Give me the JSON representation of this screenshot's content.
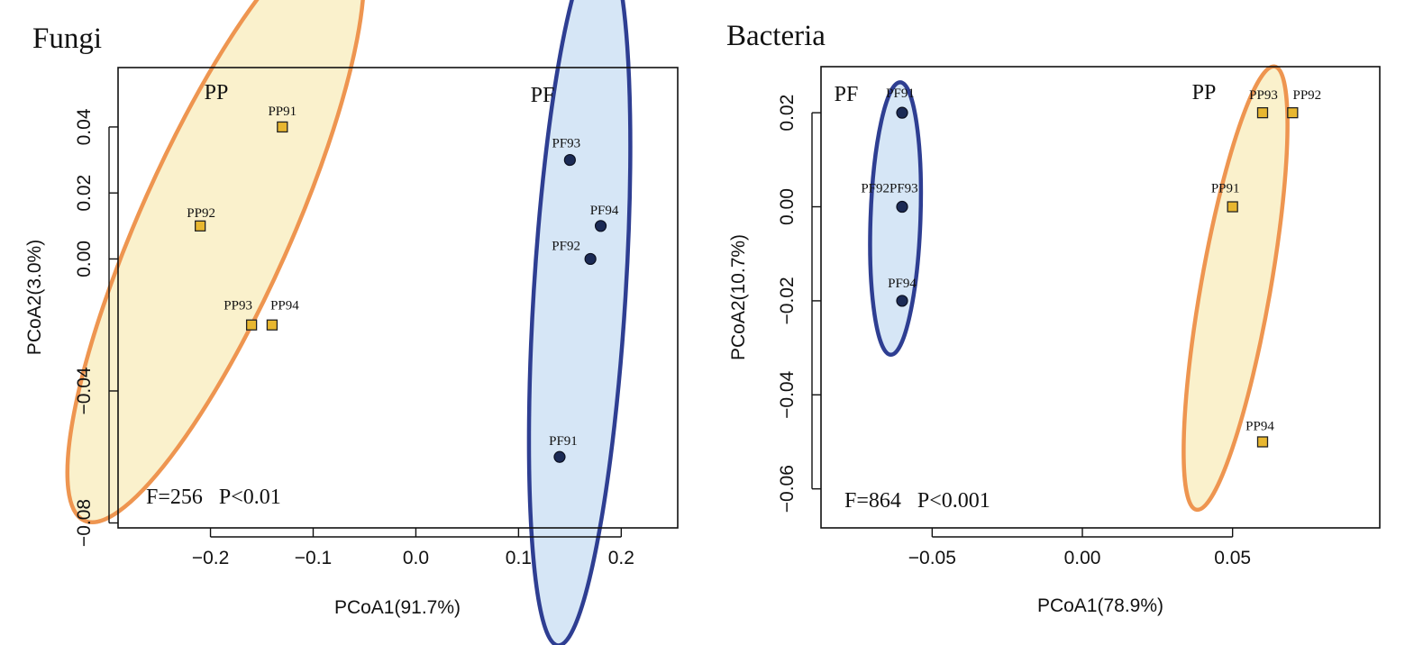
{
  "chart_data": [
    {
      "type": "scatter",
      "title": "Fungi",
      "xlabel": "PCoA1(91.7%)",
      "ylabel": "PCoA2(3.0%)",
      "xlim": [
        -0.29,
        0.255
      ],
      "ylim": [
        -0.0815,
        0.058
      ],
      "xticks": [
        -0.2,
        -0.1,
        0.0,
        0.1,
        0.2
      ],
      "xtick_labels": [
        "−0.2",
        "−0.1",
        "0.0",
        "0.1",
        "0.2"
      ],
      "yticks": [
        -0.08,
        -0.04,
        0.0,
        0.02,
        0.04
      ],
      "ytick_labels": [
        "−0.08",
        "−0.04",
        "0.00",
        "0.02",
        "0.04"
      ],
      "stat": "F=256   P<0.01",
      "series": [
        {
          "name": "PP",
          "marker": "square",
          "fill": "#E8B730",
          "ellipse_fill": "#FAF1CC",
          "ellipse_stroke": "#EE9550",
          "points": [
            {
              "label": "PP91",
              "x": -0.13,
              "y": 0.04
            },
            {
              "label": "PP92",
              "x": -0.21,
              "y": 0.01
            },
            {
              "label": "PP93",
              "x": -0.16,
              "y": -0.02
            },
            {
              "label": "PP94",
              "x": -0.14,
              "y": -0.02
            }
          ]
        },
        {
          "name": "PF",
          "marker": "circle",
          "fill": "#1B2A55",
          "ellipse_fill": "#D6E6F6",
          "ellipse_stroke": "#2E3E92",
          "points": [
            {
              "label": "PF91",
              "x": 0.14,
              "y": -0.06
            },
            {
              "label": "PF92",
              "x": 0.17,
              "y": 0.0
            },
            {
              "label": "PF93",
              "x": 0.15,
              "y": 0.03
            },
            {
              "label": "PF94",
              "x": 0.18,
              "y": 0.01
            }
          ]
        }
      ]
    },
    {
      "type": "scatter",
      "title": "Bacteria",
      "xlabel": "PCoA1(78.9%)",
      "ylabel": "PCoA2(10.7%)",
      "xlim": [
        -0.087,
        0.099
      ],
      "ylim": [
        -0.0683,
        0.0298
      ],
      "xticks": [
        -0.05,
        0.0,
        0.05
      ],
      "xtick_labels": [
        "−0.05",
        "0.00",
        "0.05"
      ],
      "yticks": [
        -0.06,
        -0.04,
        -0.02,
        0.0,
        0.02
      ],
      "ytick_labels": [
        "−0.06",
        "−0.04",
        "−0.02",
        "0.00",
        "0.02"
      ],
      "stat": "F=864   P<0.001",
      "series": [
        {
          "name": "PF",
          "marker": "circle",
          "fill": "#1B2A55",
          "ellipse_fill": "#D6E6F6",
          "ellipse_stroke": "#2E3E92",
          "points": [
            {
              "label": "PF91",
              "x": -0.06,
              "y": 0.02
            },
            {
              "label": "PF92PF93",
              "x": -0.06,
              "y": 0.0
            },
            {
              "label": "PF94",
              "x": -0.06,
              "y": -0.02
            }
          ]
        },
        {
          "name": "PP",
          "marker": "square",
          "fill": "#E8B730",
          "ellipse_fill": "#FAF1CC",
          "ellipse_stroke": "#EE9550",
          "points": [
            {
              "label": "PP93",
              "x": 0.06,
              "y": 0.02
            },
            {
              "label": "PP92",
              "x": 0.07,
              "y": 0.02
            },
            {
              "label": "PP91",
              "x": 0.05,
              "y": 0.0
            },
            {
              "label": "PP94",
              "x": 0.06,
              "y": -0.05
            }
          ]
        }
      ]
    }
  ]
}
